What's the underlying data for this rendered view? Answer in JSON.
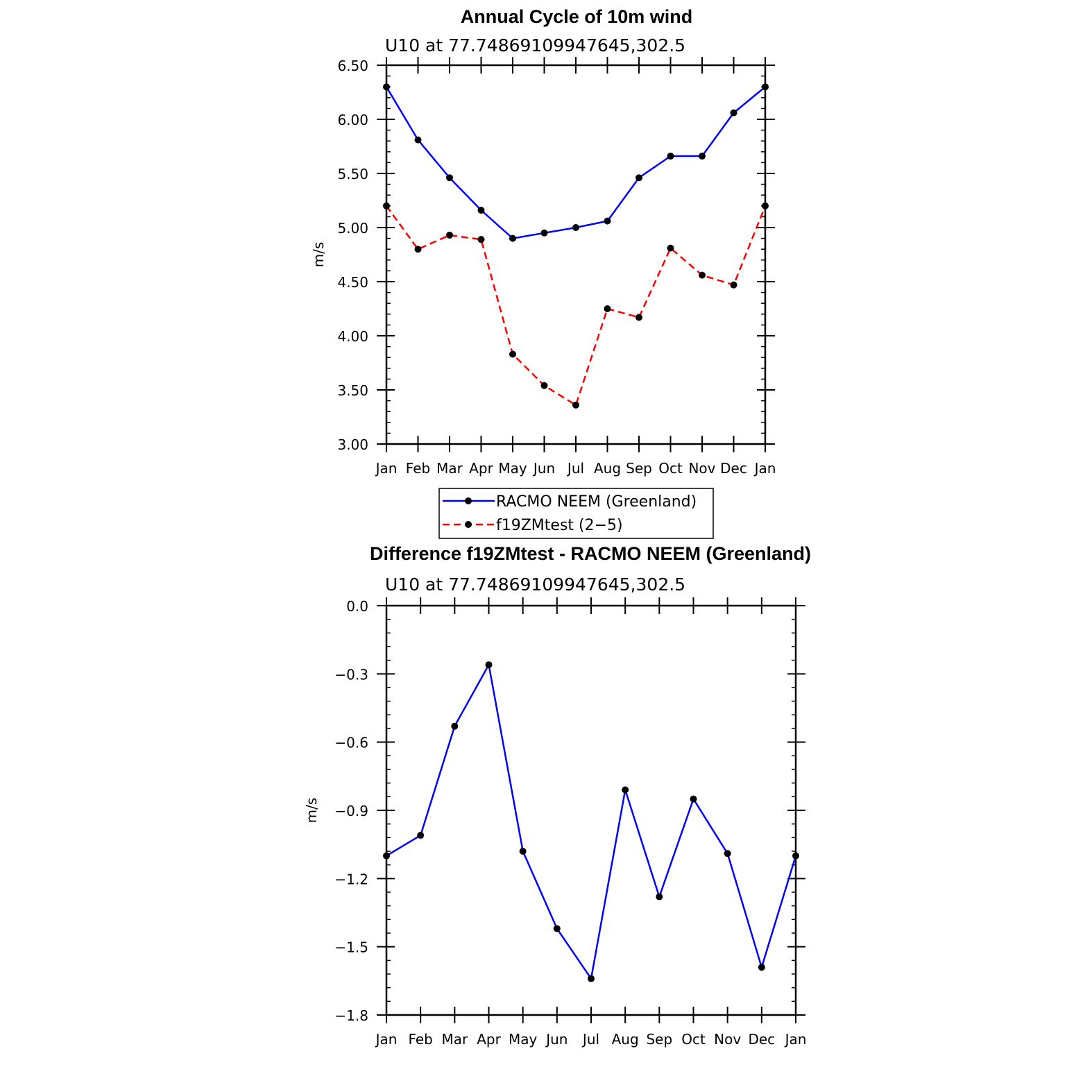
{
  "chart_data": [
    {
      "type": "line",
      "title": "Annual Cycle of 10m wind",
      "subtitle": "U10 at 77.74869109947645,302.5",
      "xlabel": "",
      "ylabel": "m/s",
      "categories": [
        "Jan",
        "Feb",
        "Mar",
        "Apr",
        "May",
        "Jun",
        "Jul",
        "Aug",
        "Sep",
        "Oct",
        "Nov",
        "Dec",
        "Jan"
      ],
      "ylim": [
        3.0,
        6.5
      ],
      "yticks": [
        "3.00",
        "3.50",
        "4.00",
        "4.50",
        "5.00",
        "5.50",
        "6.00",
        "6.50"
      ],
      "series": [
        {
          "name": "RACMO NEEM (Greenland)",
          "color": "#0000ff",
          "dash": "solid",
          "values": [
            6.3,
            5.81,
            5.46,
            5.16,
            4.9,
            4.95,
            5.0,
            5.06,
            5.46,
            5.66,
            5.66,
            6.06,
            6.3
          ]
        },
        {
          "name": "f19ZMtest (2-5)",
          "color": "#ff0000",
          "dash": "dashed",
          "values": [
            5.2,
            4.8,
            4.93,
            4.89,
            3.83,
            3.54,
            3.36,
            4.25,
            4.17,
            4.81,
            4.56,
            4.47,
            5.2
          ]
        }
      ],
      "legend": "below"
    },
    {
      "type": "line",
      "title": "Difference f19ZMtest - RACMO NEEM (Greenland)",
      "subtitle": "U10 at 77.74869109947645,302.5",
      "xlabel": "",
      "ylabel": "m/s",
      "categories": [
        "Jan",
        "Feb",
        "Mar",
        "Apr",
        "May",
        "Jun",
        "Jul",
        "Aug",
        "Sep",
        "Oct",
        "Nov",
        "Dec",
        "Jan"
      ],
      "ylim": [
        -1.8,
        0.0
      ],
      "yticks": [
        "−1.8",
        "−1.5",
        "−1.2",
        "−0.9",
        "−0.6",
        "−0.3",
        "0.0"
      ],
      "series": [
        {
          "name": "Difference",
          "color": "#0000ff",
          "dash": "solid",
          "values": [
            -1.1,
            -1.01,
            -0.53,
            -0.26,
            -1.08,
            -1.42,
            -1.64,
            -0.81,
            -1.28,
            -0.85,
            -1.09,
            -1.59,
            -1.1
          ]
        }
      ]
    }
  ],
  "legend_labels": [
    "RACMO NEEM (Greenland)",
    "f19ZMtest (2−5)"
  ]
}
